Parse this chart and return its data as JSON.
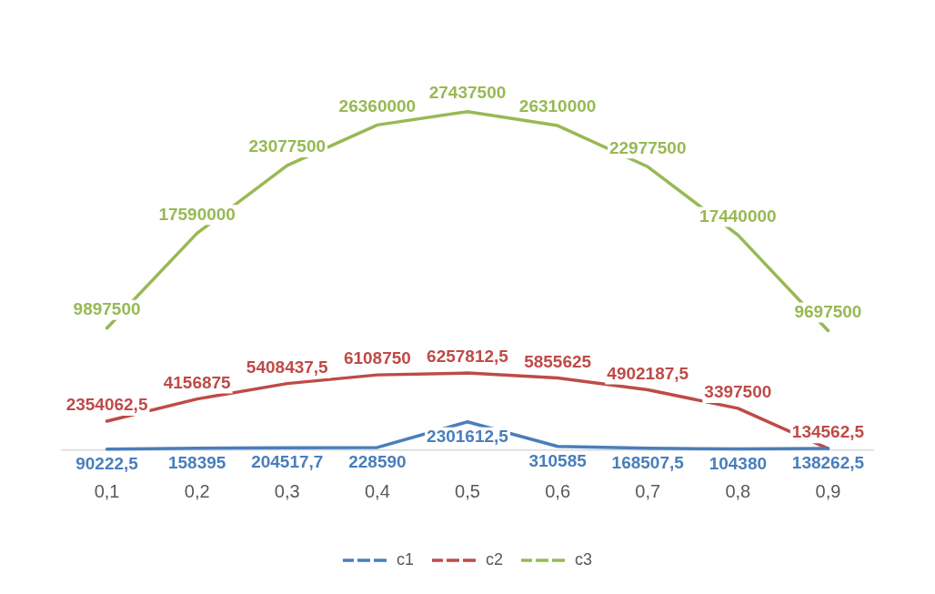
{
  "chart_data": {
    "type": "line",
    "categories": [
      "0,1",
      "0,2",
      "0,3",
      "0,4",
      "0,5",
      "0,6",
      "0,7",
      "0,8",
      "0,9"
    ],
    "series": [
      {
        "name": "c1",
        "color": "#4a7ebb",
        "values": [
          90222.5,
          158395,
          204517.7,
          228590,
          2301612.5,
          310585,
          168507.5,
          104380,
          138262.5
        ],
        "value_labels": [
          "90222,5",
          "158395",
          "204517,7",
          "228590",
          "2301612,5",
          "310585",
          "168507,5",
          "104380",
          "138262,5"
        ]
      },
      {
        "name": "c2",
        "color": "#be4b48",
        "values": [
          2354062.5,
          4156875,
          5408437.5,
          6108750,
          6257812.5,
          5855625,
          4902187.5,
          3397500,
          134562.5
        ],
        "value_labels": [
          "2354062,5",
          "4156875",
          "5408437,5",
          "6108750",
          "6257812,5",
          "5855625",
          "4902187,5",
          "3397500",
          "134562,5"
        ]
      },
      {
        "name": "c3",
        "color": "#98b954",
        "values": [
          9897500,
          17590000,
          23077500,
          26360000,
          27437500,
          26310000,
          22977500,
          17440000,
          9697500
        ]
      }
    ],
    "data_labels": true,
    "legend": "bottom",
    "grid": false,
    "marker": "none",
    "line_style": "solid",
    "tick_labels": "x"
  }
}
